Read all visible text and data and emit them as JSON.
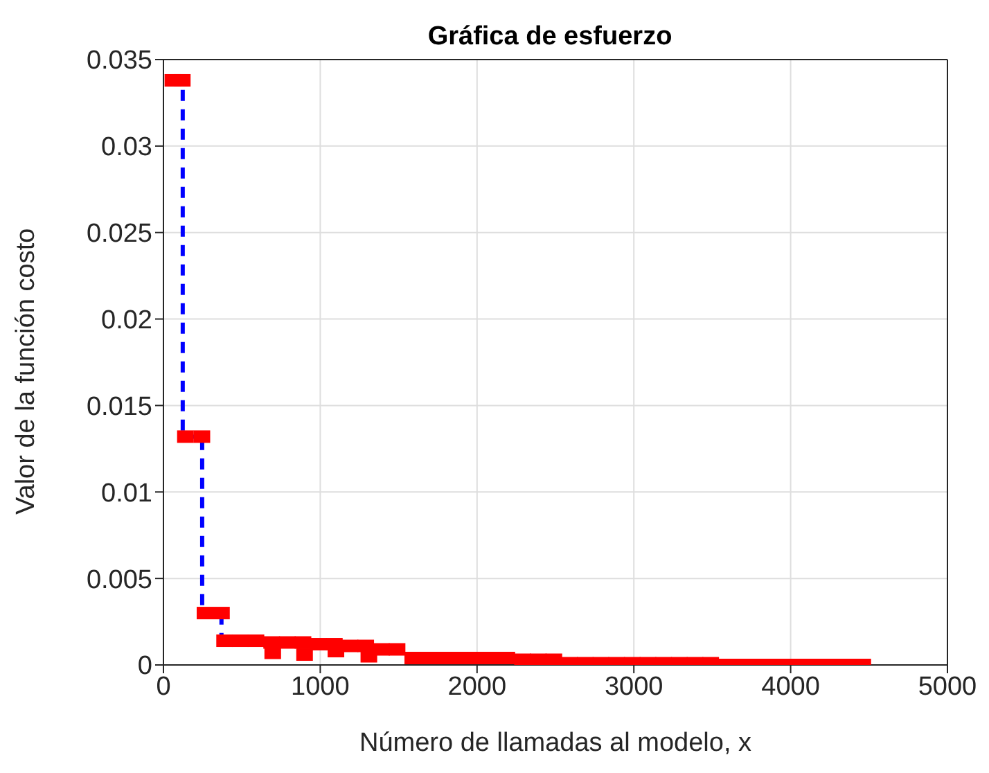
{
  "chart_data": {
    "type": "scatter",
    "title": "Gráfica de esfuerzo",
    "xlabel": "Número de llamadas al modelo, x",
    "ylabel": "Valor de la función costo",
    "xlim": [
      0,
      5000
    ],
    "xticks": [
      0,
      1000,
      2000,
      3000,
      4000,
      5000
    ],
    "ylim": [
      0,
      0.035
    ],
    "yticks": [
      0,
      0.005,
      0.01,
      0.015,
      0.02,
      0.025,
      0.03,
      0.035
    ],
    "grid": true,
    "series": [
      {
        "color": "#ff0000",
        "marker": "square",
        "x": [
          60,
          120,
          140,
          245,
          265,
          370,
          390,
          490,
          590,
          690,
          790,
          890,
          990,
          1090,
          1190,
          1290,
          1390,
          1490,
          1590,
          1690,
          1790,
          1890,
          1990,
          2090,
          2190,
          2290,
          2390,
          2490,
          2590,
          2690,
          2790,
          2890,
          2990,
          3090,
          3190,
          3290,
          3390,
          3490,
          3560,
          3660,
          3760,
          3860,
          3960,
          4060,
          4160,
          4260,
          4360,
          4460,
          697,
          900,
          1100,
          1310
        ],
        "values": [
          0.0338,
          0.0338,
          0.0132,
          0.0132,
          0.003,
          0.003,
          0.0014,
          0.0014,
          0.0014,
          0.0013,
          0.0013,
          0.0013,
          0.0012,
          0.0012,
          0.0011,
          0.0011,
          0.0009,
          0.0009,
          0.0004,
          0.0004,
          0.0004,
          0.0004,
          0.0004,
          0.0004,
          0.0004,
          0.0003,
          0.0003,
          0.0003,
          0.0001,
          0.0001,
          0.0001,
          0.0001,
          0.0001,
          0.0001,
          0.0001,
          0.0001,
          0.0001,
          0.0001,
          0,
          0,
          0,
          0,
          0,
          0,
          0,
          0,
          0,
          0,
          0.0007,
          0.0006,
          0.0008,
          0.0005
        ]
      },
      {
        "type": "step",
        "color": "#0000ff",
        "line_style": "dashed",
        "marker": "none",
        "x": [
          60,
          123,
          247,
          370
        ],
        "values": [
          0.0338,
          0.0132,
          0.003,
          0.0014
        ]
      }
    ]
  }
}
